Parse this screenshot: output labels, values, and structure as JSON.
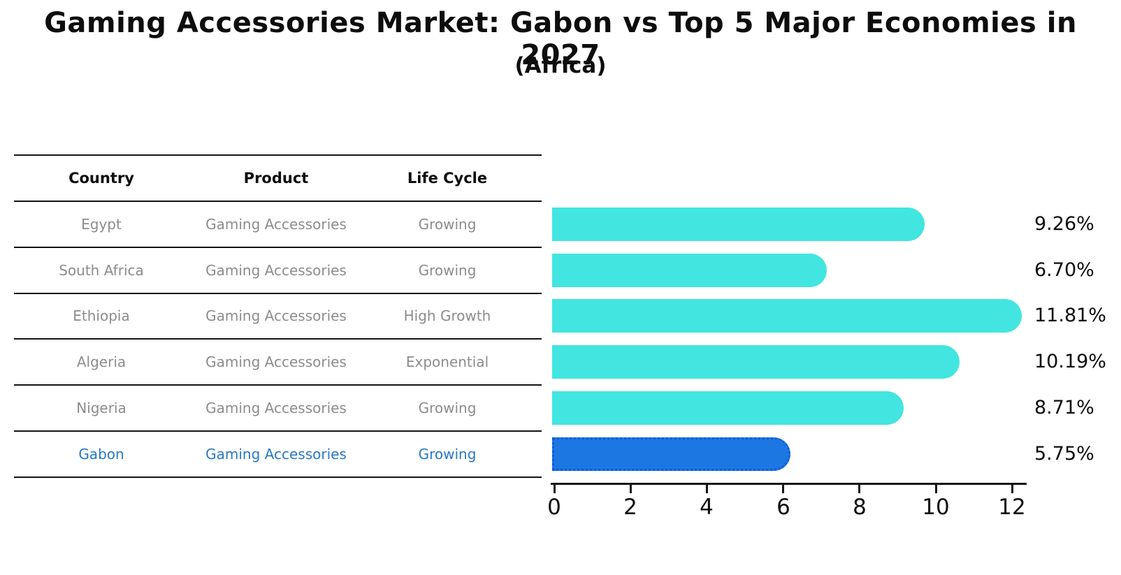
{
  "chart_data": {
    "type": "bar",
    "orientation": "horizontal",
    "title": "Gaming Accessories Market: Gabon vs Top 5 Major Economies in 2027",
    "subtitle": "(Africa)",
    "categories": [
      "Egypt",
      "South Africa",
      "Ethiopia",
      "Algeria",
      "Nigeria",
      "Gabon"
    ],
    "values": [
      9.26,
      6.7,
      11.81,
      10.19,
      8.71,
      5.75
    ],
    "value_labels": [
      "9.26%",
      "6.70%",
      "11.81%",
      "10.19%",
      "8.71%",
      "5.75%"
    ],
    "highlight_category": "Gabon",
    "xlim": [
      0,
      12.4
    ],
    "x_ticks": [
      0,
      2,
      4,
      6,
      8,
      10,
      12
    ],
    "grid": false,
    "legend": false,
    "colors": {
      "bar": "#42E5E0",
      "highlight_bar": "#1C77E2",
      "highlight_bar_border": "#0C5DD4",
      "row_text": "#8C8C8C",
      "highlight_text": "#2878C8",
      "axis_text": "#0D0D0D"
    }
  },
  "table": {
    "headers": [
      "Country",
      "Product",
      "Life Cycle"
    ],
    "rows": [
      {
        "country": "Egypt",
        "product": "Gaming Accessories",
        "life_cycle": "Growing",
        "highlight": false
      },
      {
        "country": "South Africa",
        "product": "Gaming Accessories",
        "life_cycle": "Growing",
        "highlight": false
      },
      {
        "country": "Ethiopia",
        "product": "Gaming Accessories",
        "life_cycle": "High Growth",
        "highlight": false
      },
      {
        "country": "Algeria",
        "product": "Gaming Accessories",
        "life_cycle": "Exponential",
        "highlight": false
      },
      {
        "country": "Nigeria",
        "product": "Gaming Accessories",
        "life_cycle": "Growing",
        "highlight": false
      },
      {
        "country": "Gabon",
        "product": "Gaming Accessories",
        "life_cycle": "Growing",
        "highlight": true
      }
    ]
  }
}
